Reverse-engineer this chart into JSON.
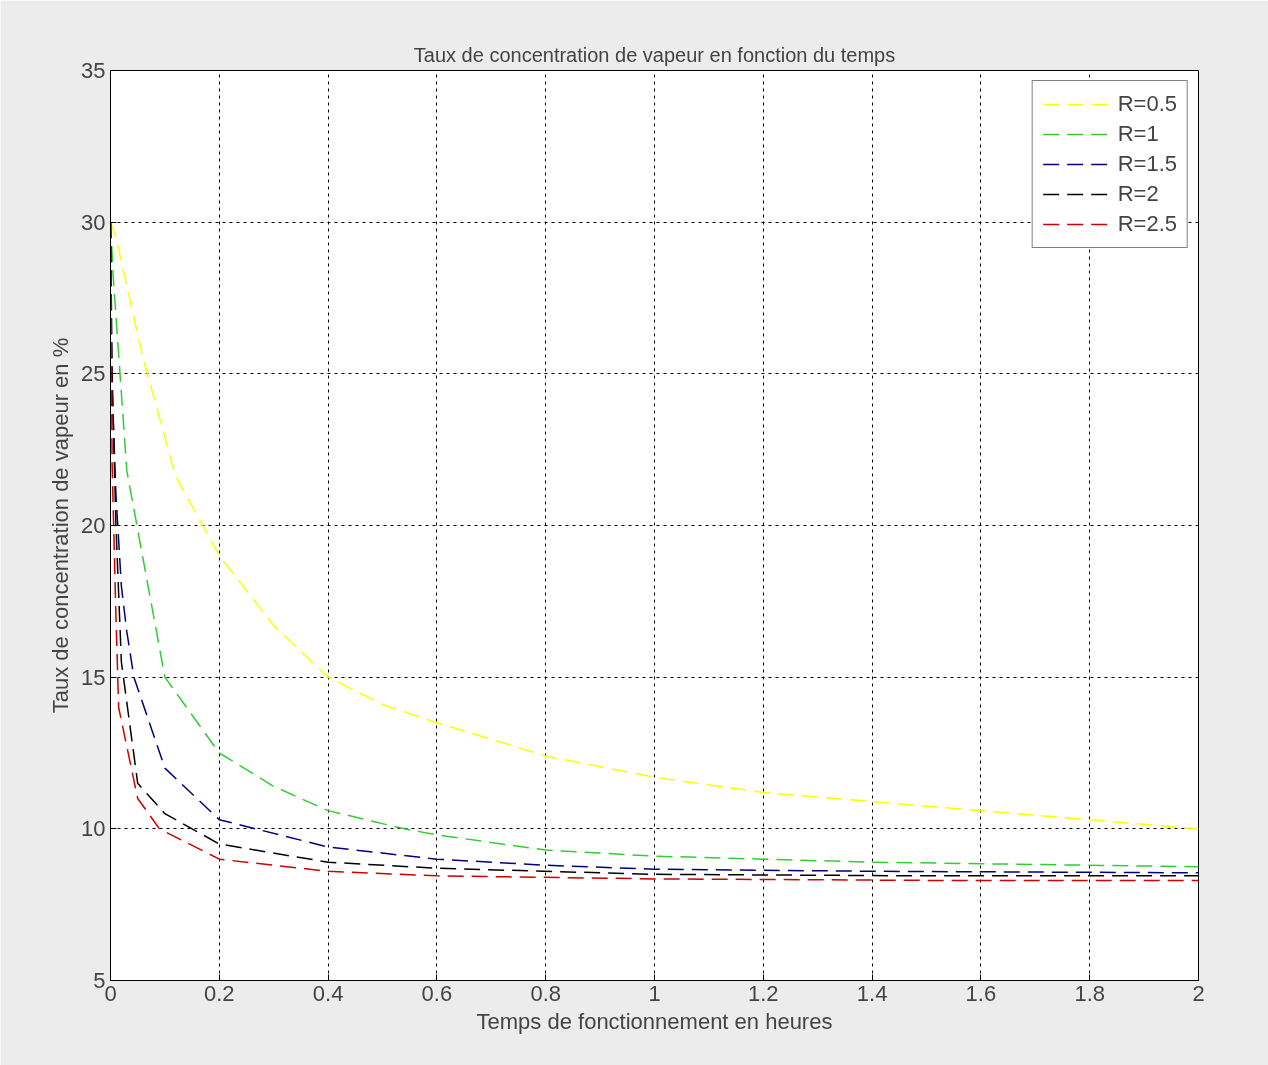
{
  "chart_data": {
    "type": "line",
    "title": "Taux de concentration de vapeur en fonction du temps",
    "xlabel": "Temps de fonctionnement en heures",
    "ylabel": "Taux de concentration de vapeur en %",
    "xlim": [
      0,
      2
    ],
    "ylim": [
      5,
      35
    ],
    "xticks": [
      0,
      0.2,
      0.4,
      0.6,
      0.8,
      1,
      1.2,
      1.4,
      1.6,
      1.8,
      2
    ],
    "yticks": [
      5,
      10,
      15,
      20,
      25,
      30,
      35
    ],
    "grid": true,
    "legend": "top right",
    "line_style": "dashed",
    "marker": "none",
    "series": [
      {
        "name": "R=0.5",
        "color": "#ffff00",
        "x": [
          0,
          0.01,
          0.06,
          0.12,
          0.2,
          0.3,
          0.4,
          0.5,
          0.6,
          0.8,
          1.0,
          1.2,
          1.4,
          1.6,
          1.8,
          2.0
        ],
        "values": [
          30,
          29.5,
          25.5,
          21.6,
          19.0,
          16.7,
          15.0,
          14.1,
          13.5,
          12.4,
          11.7,
          11.2,
          10.9,
          10.6,
          10.3,
          10.0
        ]
      },
      {
        "name": "R=1",
        "color": "#33cc33",
        "x": [
          0,
          0.005,
          0.03,
          0.1,
          0.2,
          0.3,
          0.4,
          0.54,
          0.6,
          0.8,
          1.0,
          1.2,
          1.4,
          1.6,
          2.0
        ],
        "values": [
          30,
          28.2,
          21.8,
          15.0,
          12.5,
          11.4,
          10.6,
          10.0,
          9.8,
          9.3,
          9.1,
          9.0,
          8.9,
          8.85,
          8.75
        ]
      },
      {
        "name": "R=1.5",
        "color": "#000080",
        "x": [
          0,
          0.002,
          0.01,
          0.02,
          0.03,
          0.043,
          0.1,
          0.2,
          0.4,
          0.6,
          0.8,
          1.0,
          1.4,
          2.0
        ],
        "values": [
          30,
          25,
          21,
          18,
          16.5,
          15,
          12.0,
          10.3,
          9.4,
          9.0,
          8.8,
          8.67,
          8.6,
          8.55
        ]
      },
      {
        "name": "R=2",
        "color": "#000000",
        "x": [
          0,
          0.003,
          0.01,
          0.02,
          0.05,
          0.1,
          0.2,
          0.4,
          0.6,
          1.0,
          1.5,
          2.0
        ],
        "values": [
          30,
          25,
          20,
          15.5,
          11.5,
          10.5,
          9.5,
          8.9,
          8.7,
          8.5,
          8.45,
          8.45
        ]
      },
      {
        "name": "R=2.5",
        "color": "#cc0000",
        "x": [
          0,
          0.003,
          0.01,
          0.015,
          0.05,
          0.09,
          0.2,
          0.4,
          0.6,
          1.0,
          1.5,
          2.0
        ],
        "values": [
          30,
          22,
          17,
          14,
          11,
          10.0,
          9.0,
          8.6,
          8.45,
          8.35,
          8.3,
          8.3
        ]
      }
    ]
  }
}
